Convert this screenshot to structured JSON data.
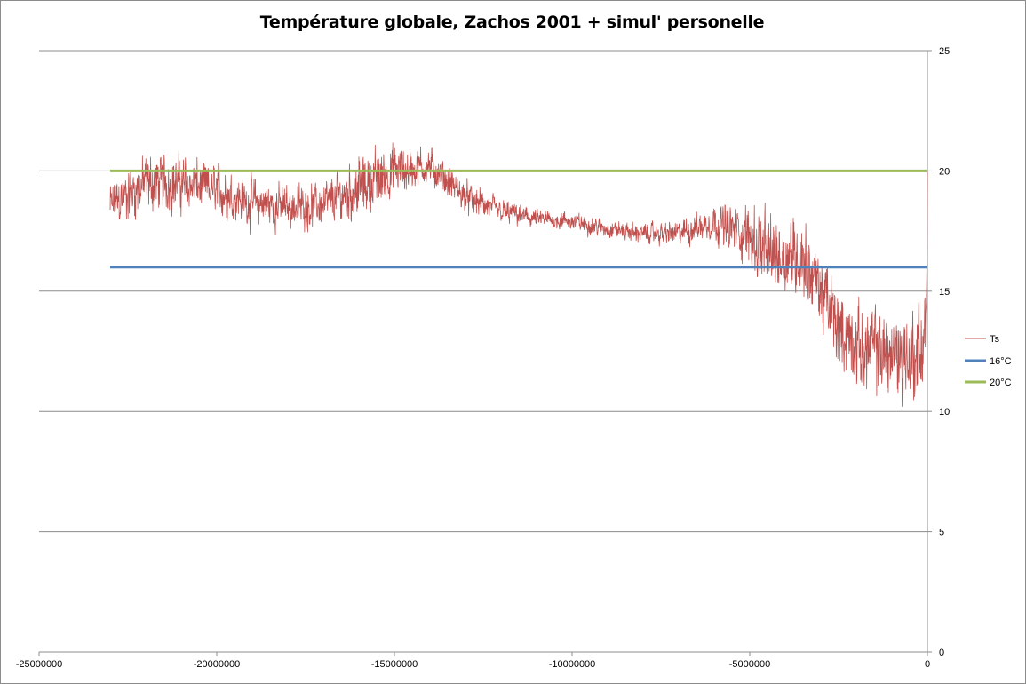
{
  "chart_data": {
    "type": "line",
    "title": "Température globale, Zachos 2001 + simul' personelle",
    "xlabel": "",
    "ylabel": "",
    "xlim": [
      -25000000,
      0
    ],
    "ylim": [
      0,
      25
    ],
    "x_ticks": [
      -25000000,
      -20000000,
      -15000000,
      -10000000,
      -5000000,
      0
    ],
    "x_tick_labels": [
      "-25000000",
      "-20000000",
      "-15000000",
      "-10000000",
      "-5000000",
      "0"
    ],
    "y_ticks": [
      0,
      5,
      10,
      15,
      20,
      25
    ],
    "y_tick_labels": [
      "0",
      "5",
      "10",
      "15",
      "20",
      "25"
    ],
    "y_axis_side": "right",
    "grid": "horizontal",
    "legend_position": "right",
    "series": [
      {
        "name": "Ts",
        "color": "#c0504d",
        "x": [
          -23000000,
          -22000000,
          -21000000,
          -20000000,
          -19000000,
          -18000000,
          -17000000,
          -16000000,
          -15000000,
          -14000000,
          -13000000,
          -12000000,
          -11000000,
          -10000000,
          -9000000,
          -8000000,
          -7000000,
          -6000000,
          -5000000,
          -4500000,
          -4000000,
          -3500000,
          -3000000,
          -2500000,
          -2000000,
          -1500000,
          -1000000,
          -500000,
          -200000,
          -50000,
          0
        ],
        "values": [
          18.5,
          19.5,
          19.5,
          19.2,
          18.7,
          18.5,
          18.6,
          19.3,
          20.0,
          20.2,
          18.9,
          18.3,
          18.0,
          17.9,
          17.6,
          17.4,
          17.4,
          17.9,
          17.3,
          16.5,
          16.6,
          16.4,
          15.0,
          13.5,
          12.7,
          12.6,
          12.4,
          12.3,
          12.5,
          13.5,
          20.0
        ],
        "noise_amplitude": [
          0.8,
          1.0,
          0.9,
          0.8,
          0.8,
          0.7,
          0.7,
          1.0,
          0.9,
          0.6,
          0.5,
          0.4,
          0.3,
          0.3,
          0.3,
          0.3,
          0.4,
          0.6,
          1.0,
          1.4,
          1.3,
          1.3,
          1.3,
          1.3,
          1.3,
          1.4,
          1.5,
          1.6,
          1.6,
          1.6,
          0.0
        ]
      },
      {
        "name": "16°C",
        "color": "#4f81bd",
        "x": [
          -23000000,
          0
        ],
        "values": [
          16,
          16
        ]
      },
      {
        "name": "20°C",
        "color": "#9bbb59",
        "x": [
          -23000000,
          0
        ],
        "values": [
          20,
          20
        ]
      }
    ]
  }
}
